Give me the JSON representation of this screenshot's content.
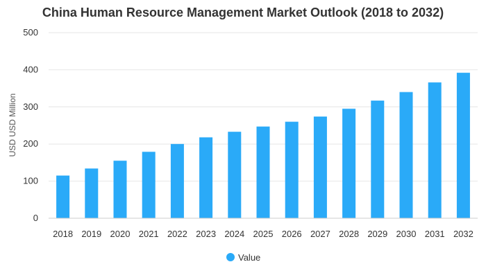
{
  "chart_data": {
    "type": "bar",
    "title": "China Human Resource Management Market Outlook (2018 to 2032)",
    "xlabel": "",
    "ylabel": "USD USD Million",
    "ylim": [
      0,
      500
    ],
    "yticks": [
      0,
      100,
      200,
      300,
      400,
      500
    ],
    "categories": [
      "2018",
      "2019",
      "2020",
      "2021",
      "2022",
      "2023",
      "2024",
      "2025",
      "2026",
      "2027",
      "2028",
      "2029",
      "2030",
      "2031",
      "2032"
    ],
    "series": [
      {
        "name": "Value",
        "color": "#2aaaf8",
        "values": [
          115,
          134,
          155,
          179,
          200,
          218,
          233,
          247,
          260,
          274,
          295,
          317,
          340,
          366,
          392
        ]
      }
    ],
    "grid": true,
    "legend": "bottom-center"
  }
}
